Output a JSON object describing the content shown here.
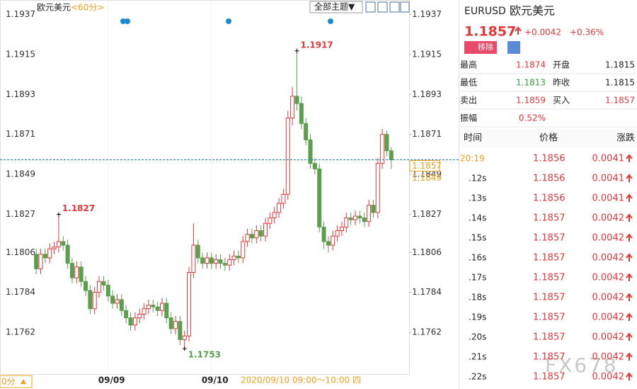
{
  "chart_data": {
    "type": "candlestick",
    "title": "欧元美元",
    "period": "<60分>",
    "categories": [
      null,
      null,
      null,
      null,
      null,
      null,
      null,
      null,
      null,
      null,
      null,
      null,
      null,
      null,
      null,
      null,
      "09/09",
      null,
      null,
      null,
      null,
      null,
      null,
      null,
      null,
      null,
      null,
      null,
      null,
      null,
      null,
      null,
      null,
      null,
      null,
      null,
      null,
      null,
      null,
      "09/10",
      null,
      null,
      null,
      null,
      null,
      null,
      null,
      null,
      null,
      null,
      null,
      null,
      null,
      null,
      null,
      null,
      null,
      null,
      null,
      null,
      null,
      null,
      null,
      null,
      null,
      null,
      null,
      null,
      null,
      null,
      null,
      null,
      null,
      null,
      null,
      null,
      null,
      null,
      null,
      null
    ],
    "open": [
      1.1805,
      1.1797,
      1.1805,
      1.1803,
      1.1808,
      1.1809,
      1.1812,
      1.181,
      1.18,
      1.1792,
      1.1798,
      1.179,
      1.1785,
      1.1775,
      1.1784,
      1.179,
      1.1788,
      1.1782,
      1.1778,
      1.178,
      1.1774,
      1.177,
      1.1766,
      1.177,
      1.1772,
      1.1775,
      1.1777,
      1.1776,
      1.1774,
      1.1778,
      1.177,
      1.1764,
      1.1768,
      1.1758,
      1.176,
      1.1795,
      1.181,
      1.1803,
      1.18,
      1.1803,
      1.18,
      1.1802,
      1.18,
      1.1799,
      1.1802,
      1.1804,
      1.1803,
      1.1812,
      1.1816,
      1.1814,
      1.1818,
      1.1815,
      1.1822,
      1.1825,
      1.1828,
      1.1833,
      1.1838,
      1.188,
      1.1892,
      1.1888,
      1.1877,
      1.1868,
      1.1855,
      1.1852,
      1.182,
      1.1812,
      1.181,
      1.1815,
      1.1818,
      1.182,
      1.1825,
      1.1824,
      1.1826,
      1.1825,
      1.1823,
      1.1832,
      1.1828,
      1.1855,
      1.1871,
      1.1862
    ],
    "high": [
      1.1808,
      1.1808,
      1.1808,
      1.1811,
      1.1812,
      1.1827,
      1.1815,
      1.1813,
      1.1803,
      1.1801,
      1.1801,
      1.1793,
      1.1788,
      1.1787,
      1.1793,
      1.1793,
      1.1791,
      1.1785,
      1.1783,
      1.1783,
      1.1777,
      1.1773,
      1.1773,
      1.1775,
      1.1778,
      1.178,
      1.178,
      1.1779,
      1.1781,
      1.1781,
      1.1773,
      1.1771,
      1.1771,
      1.1763,
      1.1798,
      1.1822,
      1.1813,
      1.1806,
      1.1806,
      1.1806,
      1.1805,
      1.1805,
      1.1803,
      1.1805,
      1.1807,
      1.1807,
      1.1815,
      1.1819,
      1.1819,
      1.1821,
      1.1821,
      1.1825,
      1.1828,
      1.1831,
      1.1836,
      1.1841,
      1.1884,
      1.1897,
      1.1917,
      1.1892,
      1.188,
      1.1871,
      1.1858,
      1.1855,
      1.1823,
      1.1815,
      1.1818,
      1.1821,
      1.1823,
      1.1828,
      1.1828,
      1.1829,
      1.1829,
      1.1828,
      1.1835,
      1.1835,
      1.1858,
      1.1874,
      1.1873,
      1.1864
    ],
    "low": [
      1.1794,
      1.1794,
      1.18,
      1.18,
      1.1805,
      1.1806,
      1.1807,
      1.1797,
      1.1789,
      1.1789,
      1.1787,
      1.1782,
      1.1772,
      1.1772,
      1.1781,
      1.1785,
      1.1779,
      1.1775,
      1.1775,
      1.1771,
      1.1767,
      1.1763,
      1.1763,
      1.1767,
      1.1769,
      1.1772,
      1.1773,
      1.1771,
      1.1771,
      1.1767,
      1.1761,
      1.1761,
      1.1755,
      1.1753,
      1.1757,
      1.1792,
      1.18,
      1.1797,
      1.1797,
      1.1797,
      1.1797,
      1.1797,
      1.1796,
      1.1796,
      1.1799,
      1.18,
      1.18,
      1.1809,
      1.1811,
      1.1811,
      1.1812,
      1.1812,
      1.1819,
      1.1822,
      1.1825,
      1.183,
      1.1835,
      1.1876,
      1.1884,
      1.1874,
      1.1865,
      1.1852,
      1.1849,
      1.1817,
      1.1808,
      1.1806,
      1.1807,
      1.1812,
      1.1815,
      1.1817,
      1.1821,
      1.1821,
      1.1822,
      1.182,
      1.182,
      1.1825,
      1.1825,
      1.1852,
      1.1859,
      1.1852
    ],
    "close": [
      1.1797,
      1.1805,
      1.1803,
      1.1808,
      1.1809,
      1.1812,
      1.181,
      1.18,
      1.1792,
      1.1798,
      1.179,
      1.1785,
      1.1775,
      1.1784,
      1.179,
      1.1788,
      1.1782,
      1.1778,
      1.178,
      1.1774,
      1.177,
      1.1766,
      1.177,
      1.1772,
      1.1775,
      1.1777,
      1.1776,
      1.1774,
      1.1778,
      1.177,
      1.1764,
      1.1768,
      1.1758,
      1.176,
      1.1795,
      1.181,
      1.1803,
      1.18,
      1.1803,
      1.18,
      1.1802,
      1.18,
      1.1799,
      1.1802,
      1.1804,
      1.1803,
      1.1812,
      1.1816,
      1.1814,
      1.1818,
      1.1815,
      1.1822,
      1.1825,
      1.1828,
      1.1833,
      1.1838,
      1.188,
      1.1892,
      1.1888,
      1.1877,
      1.1868,
      1.1855,
      1.1852,
      1.182,
      1.1812,
      1.181,
      1.1815,
      1.1818,
      1.182,
      1.1825,
      1.1824,
      1.1826,
      1.1825,
      1.1823,
      1.1832,
      1.1828,
      1.1855,
      1.1871,
      1.1862,
      1.1857
    ],
    "up_color": "#e0383a",
    "down_color": "#5a9e4e",
    "average": 1.1849,
    "ylim": [
      1.1739,
      1.1945
    ],
    "yticks": [
      1.1762,
      1.1784,
      1.1806,
      1.1827,
      1.1849,
      1.1871,
      1.1893,
      1.1915,
      1.1937
    ]
  },
  "ui": {
    "theme_button": "全部主题▼",
    "bottom_left": "0分",
    "time_range": "2020/09/10 09:00～10:00 四",
    "watermark": "FX678"
  },
  "quote": {
    "symbol": "EURUSD",
    "name": "欧元美元",
    "price": 1.1857,
    "change": "+0.0042",
    "change_pct": "+0.36%",
    "remove": "移除",
    "stats": [
      [
        "最高",
        1.1874,
        "开盘",
        1.1815
      ],
      [
        "最低",
        1.1813,
        "昨收",
        1.1815
      ],
      [
        "卖出",
        1.1859,
        "买入",
        1.1857
      ],
      [
        "振幅",
        "0.52%"
      ]
    ],
    "ticks_header": [
      "时间",
      "价格",
      "涨跌"
    ],
    "ticks": [
      [
        "20:19",
        1.1856,
        0.0041
      ],
      [
        ".12s",
        1.1856,
        0.0041
      ],
      [
        ".13s",
        1.1856,
        0.0041
      ],
      [
        ".14s",
        1.1857,
        0.0042
      ],
      [
        ".15s",
        1.1857,
        0.0042
      ],
      [
        ".16s",
        1.1857,
        0.0042
      ],
      [
        ".17s",
        1.1857,
        0.0042
      ],
      [
        ".18s",
        1.1857,
        0.0042
      ],
      [
        ".19s",
        1.1857,
        0.0042
      ],
      [
        ".20s",
        1.1857,
        0.0042
      ],
      [
        ".21s",
        1.1857,
        0.0042
      ],
      [
        ".22s",
        1.1857,
        0.0042
      ]
    ]
  }
}
